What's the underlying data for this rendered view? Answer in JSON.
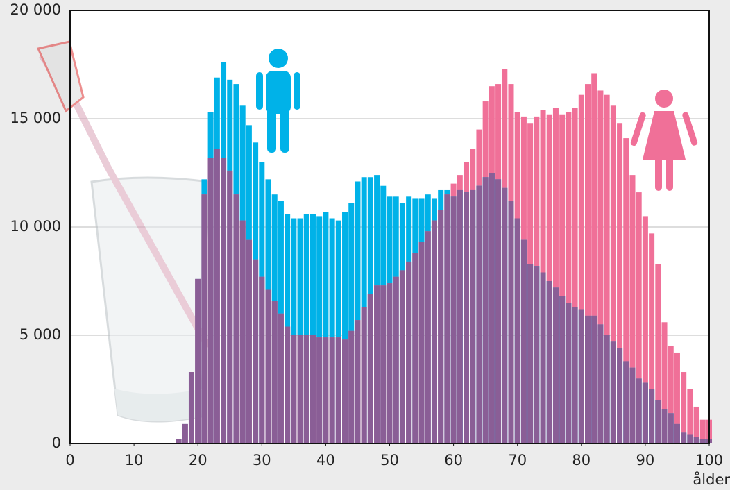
{
  "chart_data": {
    "type": "bar",
    "x_label": "ålder",
    "x": [
      17,
      18,
      19,
      20,
      21,
      22,
      23,
      24,
      25,
      26,
      27,
      28,
      29,
      30,
      31,
      32,
      33,
      34,
      35,
      36,
      37,
      38,
      39,
      40,
      41,
      42,
      43,
      44,
      45,
      46,
      47,
      48,
      49,
      50,
      51,
      52,
      53,
      54,
      55,
      56,
      57,
      58,
      59,
      60,
      61,
      62,
      63,
      64,
      65,
      66,
      67,
      68,
      69,
      70,
      71,
      72,
      73,
      74,
      75,
      76,
      77,
      78,
      79,
      80,
      81,
      82,
      83,
      84,
      85,
      86,
      87,
      88,
      89,
      90,
      91,
      92,
      93,
      94,
      95,
      96,
      97,
      98,
      99,
      100
    ],
    "series": [
      {
        "color": "#00b2e8",
        "values": [
          200,
          900,
          3300,
          7600,
          12200,
          15300,
          16900,
          17600,
          16800,
          16600,
          15600,
          14700,
          13900,
          13000,
          12200,
          11500,
          11200,
          10600,
          10400,
          10400,
          10600,
          10600,
          10500,
          10700,
          10400,
          10300,
          10700,
          11100,
          12100,
          12300,
          12300,
          12400,
          11900,
          11400,
          11400,
          11100,
          11400,
          11300,
          11300,
          11500,
          11300,
          11700,
          11700,
          11400,
          11700,
          11600,
          11700,
          11900,
          12300,
          12500,
          12200,
          11800,
          11200,
          10400,
          9400,
          8300,
          8200,
          7900,
          7500,
          7200,
          6800,
          6500,
          6300,
          6200,
          5900,
          5900,
          5500,
          5000,
          4700,
          4400,
          3800,
          3500,
          3000,
          2800,
          2500,
          2000,
          1600,
          1400,
          900,
          500,
          400,
          300,
          200,
          200
        ]
      },
      {
        "color": "#f07098",
        "values": [
          200,
          900,
          3300,
          7600,
          11500,
          13200,
          13600,
          13200,
          12600,
          11500,
          10300,
          9400,
          8500,
          7700,
          7100,
          6600,
          6000,
          5400,
          5000,
          5000,
          5000,
          5000,
          4900,
          4900,
          4900,
          4900,
          4800,
          5200,
          5700,
          6300,
          6900,
          7300,
          7300,
          7400,
          7700,
          8000,
          8400,
          8800,
          9300,
          9800,
          10300,
          10800,
          11500,
          12000,
          12400,
          13000,
          13600,
          14500,
          15800,
          16500,
          16600,
          17300,
          16600,
          15300,
          15100,
          14800,
          15100,
          15400,
          15200,
          15500,
          15200,
          15300,
          15500,
          16100,
          16600,
          17100,
          16300,
          16100,
          15600,
          14800,
          14100,
          12400,
          11600,
          10500,
          9700,
          8300,
          5600,
          4500,
          4200,
          3300,
          2500,
          1700,
          1100,
          1100
        ]
      }
    ],
    "overlap_color": "#8a5e96",
    "xlim": [
      0,
      100
    ],
    "xticks": [
      0,
      10,
      20,
      30,
      40,
      50,
      60,
      70,
      80,
      90,
      100
    ],
    "ylim": [
      0,
      20000
    ],
    "yticks": [
      0,
      {
        "value": 5000,
        "label": "5 000"
      },
      {
        "value": 10000,
        "label": "10 000"
      },
      {
        "value": 15000,
        "label": "15 000"
      },
      {
        "value": 20000,
        "label": "20 000"
      }
    ],
    "grid": true
  }
}
